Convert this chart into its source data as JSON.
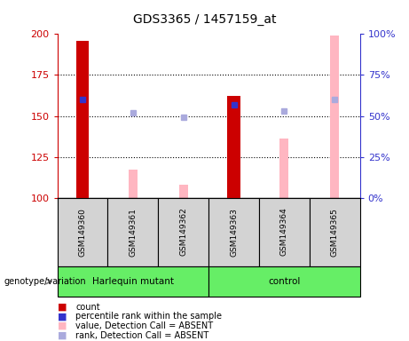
{
  "title": "GDS3365 / 1457159_at",
  "samples": [
    "GSM149360",
    "GSM149361",
    "GSM149362",
    "GSM149363",
    "GSM149364",
    "GSM149365"
  ],
  "ylim_left": [
    100,
    200
  ],
  "ylim_right": [
    0,
    100
  ],
  "yticks_left": [
    100,
    125,
    150,
    175,
    200
  ],
  "yticks_right": [
    0,
    25,
    50,
    75,
    100
  ],
  "ytick_labels_right": [
    "0%",
    "25%",
    "50%",
    "75%",
    "100%"
  ],
  "count_values": [
    196,
    null,
    null,
    162,
    null,
    null
  ],
  "count_color": "#CC0000",
  "percentile_values": [
    160,
    null,
    null,
    157,
    null,
    null
  ],
  "percentile_color": "#3333CC",
  "absent_value_values": [
    null,
    117,
    108,
    null,
    136,
    199
  ],
  "absent_value_color": "#FFB6C1",
  "absent_rank_values": [
    null,
    52,
    49,
    null,
    53,
    60
  ],
  "absent_rank_color": "#AAAADD",
  "left_color": "#CC0000",
  "right_color": "#3333CC",
  "sample_box_color": "#D3D3D3",
  "harlequin_color": "#66EE66",
  "control_color": "#44DD44",
  "title_fontsize": 10,
  "legend_items": [
    [
      "#CC0000",
      "count"
    ],
    [
      "#3333CC",
      "percentile rank within the sample"
    ],
    [
      "#FFB6C1",
      "value, Detection Call = ABSENT"
    ],
    [
      "#AAAADD",
      "rank, Detection Call = ABSENT"
    ]
  ],
  "grid_yticks": [
    125,
    150,
    175
  ],
  "harlequin_label": "Harlequin mutant",
  "control_label": "control",
  "genotype_label": "genotype/variation"
}
